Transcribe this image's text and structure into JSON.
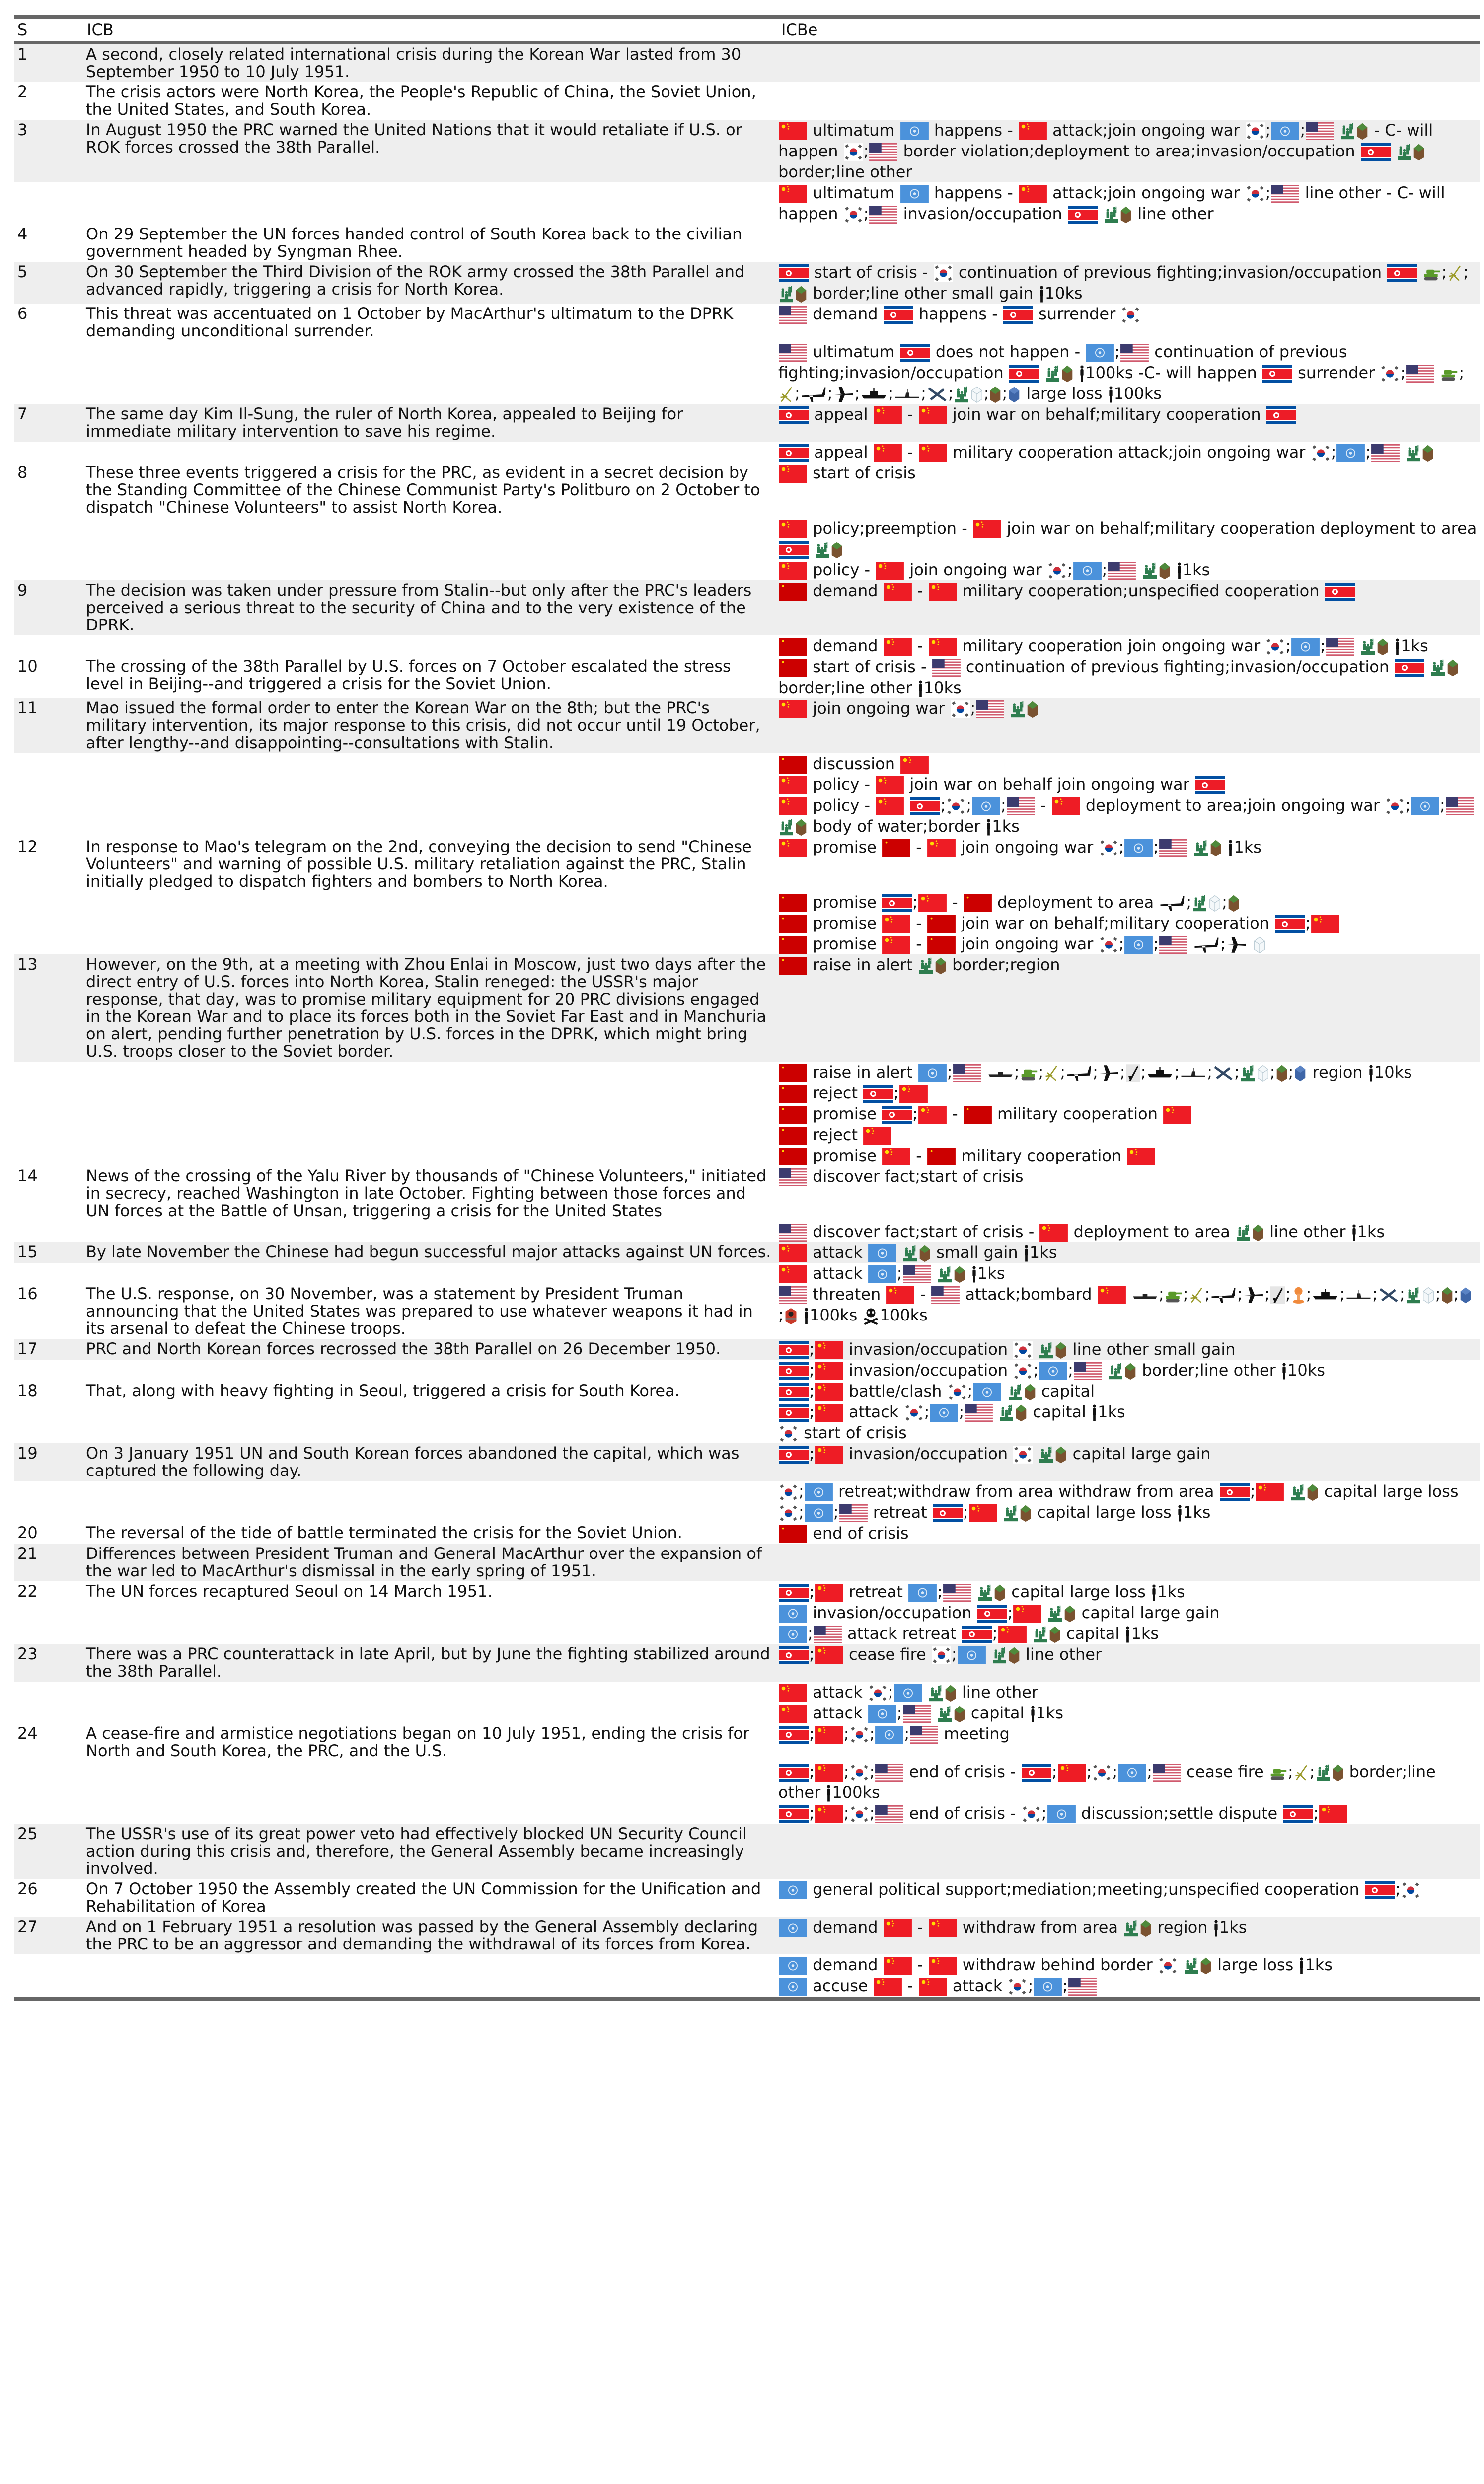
{
  "header": {
    "s": "S",
    "icb": "ICB",
    "icbe": "ICBe"
  },
  "icon_legend": {
    "CN": "china-flag",
    "SU": "soviet-flag",
    "UN": "un-flag",
    "US": "us-flag",
    "KR": "south-korea-flag",
    "KP": "north-korea-flag",
    "army": "army-icon",
    "land": "land-icon",
    "air": "air-icon",
    "sea": "sea-icon",
    "tank": "tank-icon",
    "artillery": "artillery-icon",
    "transport": "transport-plane-icon",
    "fighter": "fighter-jet-icon",
    "ship": "ship-icon",
    "sub": "submarine-icon",
    "bomber": "bomber-icon",
    "missile": "missile-icon",
    "nuke": "nuclear-icon",
    "boat": "boat-icon",
    "wmd": "wmd-icon",
    "person": "person-icon",
    "skull": "skull-icon"
  },
  "rows": [
    {
      "s": "1",
      "icb": "A second, closely related international crisis during the Korean War lasted from 30 September 1950 to 10 July 1951.",
      "events": []
    },
    {
      "s": "2",
      "icb": "The crisis actors were North Korea, the People's Republic of China, the Soviet Union, the United States, and South Korea.",
      "events": []
    },
    {
      "s": "3",
      "icb": "In August 1950 the PRC warned the United Nations that it would retaliate if U.S. or ROK forces crossed the 38th Parallel.",
      "events": [
        "{CN} ultimatum {UN} happens - {CN} attack;join ongoing war {KR};{UN};{US} {army}{land} - C- will happen {KR};{US} border violation;deployment to area;invasion/occupation {KP} {army}{land} border;line other",
        "{CN} ultimatum {UN} happens - {CN} attack;join ongoing war {KR};{US} line other - C- will happen {KR};{US} invasion/occupation {KP} {army}{land} line other"
      ]
    },
    {
      "s": "4",
      "icb": "On 29 September the UN forces handed control of South Korea back to the civilian government headed by Syngman Rhee.",
      "events": []
    },
    {
      "s": "5",
      "icb": "On 30 September the Third Division of the ROK army crossed the 38th Parallel and advanced rapidly, triggering a crisis for North Korea.",
      "events": [
        "{KP} start of crisis - {KR} continuation of previous fighting;invasion/occupation {KP} {tank};{artillery};{army}{land} border;line other small gain {person}10ks"
      ]
    },
    {
      "s": "6",
      "icb": "This threat was accentuated on 1 October by MacArthur's ultimatum to the DPRK demanding unconditional surrender.",
      "events": [
        "{US} demand {KP} happens - {KP} surrender {KR}",
        "{US} ultimatum {KP} does not happen - {UN};{US} continuation of previous fighting;invasion/occupation {KP} {army}{land} {person}100ks -C- will happen {KP} surrender {KR};{US} {tank};{artillery};{transport};{fighter};{ship};{sub};{bomber};{army}{air};{land};{sea} large loss {person}100ks"
      ]
    },
    {
      "s": "7",
      "icb": "The same day Kim Il-Sung, the ruler of North Korea, appealed to Beijing for immediate military intervention to save his regime.",
      "events": [
        "{KP} appeal {CN} - {CN} join war on behalf;military cooperation {KP}",
        "{KP} appeal {CN} - {CN} military cooperation attack;join ongoing war {KR};{UN};{US} {army}{land}"
      ]
    },
    {
      "s": "8",
      "icb": "These three events triggered a crisis for the PRC, as evident in a secret decision by the Standing Committee of the Chinese Communist Party's Politburo on 2 October to dispatch \"Chinese Volunteers\" to assist North Korea.",
      "events": [
        "{CN} start of crisis",
        "{CN} policy;preemption - {CN} join war on behalf;military cooperation deployment to area {KP} {army}{land}",
        "{CN} policy - {CN} join ongoing war {KR};{UN};{US} {army}{land} {person}1ks"
      ]
    },
    {
      "s": "9",
      "icb": "The decision was taken under pressure from Stalin--but only after the PRC's leaders perceived a serious threat to the security of China and to the very existence of the DPRK.",
      "events": [
        "{SU} demand {CN} - {CN} military cooperation;unspecified cooperation {KP}",
        "{SU} demand {CN} - {CN} military cooperation join ongoing war {KR};{UN};{US} {army}{land} {person}1ks"
      ]
    },
    {
      "s": "10",
      "icb": "The crossing of the 38th Parallel by U.S. forces on 7 October escalated the stress level in Beijing--and triggered a crisis for the Soviet Union.",
      "events": [
        "{SU} start of crisis - {US} continuation of previous fighting;invasion/occupation {KP} {army}{land} border;line other {person}10ks"
      ]
    },
    {
      "s": "11",
      "icb": "Mao issued the formal order to enter the Korean War on the 8th; but the PRC's military intervention, its major response to this crisis, did not occur until 19 October, after lengthy--and disappointing--consultations with Stalin.",
      "events": [
        "{CN} join ongoing war {KR};{US} {army}{land}",
        "{SU} discussion {CN}",
        "{CN} policy - {CN} join war on behalf join ongoing war {KP}",
        "{CN} policy - {CN} {KP};{KR};{UN};{US} - {CN} deployment to area;join ongoing war {KR};{UN};{US} {army}{land} body of water;border {person}1ks"
      ]
    },
    {
      "s": "12",
      "icb": "In response to Mao's telegram on the 2nd, conveying the decision to send \"Chinese Volunteers\" and warning of possible U.S. military retaliation against the PRC, Stalin initially pledged to dispatch fighters and bombers to North Korea.",
      "events": [
        "{CN} promise {SU} - {CN} join ongoing war {KR};{UN};{US} {army}{land} {person}1ks",
        "{SU} promise {KP};{CN} - {SU} deployment to area {transport};{army}{air};{land}",
        "{SU} promise {CN} - {SU} join war on behalf;military cooperation {KP};{CN}",
        "{SU} promise {CN} - {SU} join ongoing war {KR};{UN};{US} {transport};{fighter} {air}"
      ]
    },
    {
      "s": "13",
      "icb": "However, on the 9th, at a meeting with Zhou Enlai in Moscow, just two days after the direct entry of U.S. forces into North Korea, Stalin reneged: the USSR's major response, that day, was to promise military equipment for 20 PRC divisions engaged in the Korean War and to place its forces both in the Soviet Far East and in Manchuria on alert, pending further penetration by U.S. forces in the DPRK, which might bring U.S. troops closer to the Soviet border.",
      "events": [
        "{SU} raise in alert {army}{land} border;region",
        "{SU} raise in alert {UN};{US} {boat};{tank};{artillery};{transport};{fighter};{missile};{ship};{sub};{bomber};{army}{air};{land};{sea} region {person}10ks",
        "{SU} reject {KP};{CN}",
        "{SU} promise {KP};{CN} - {SU} military cooperation {CN}",
        "{SU} reject {CN}",
        "{SU} promise {CN} - {SU} military cooperation {CN}"
      ]
    },
    {
      "s": "14",
      "icb": "News of the crossing of the Yalu River by thousands of \"Chinese Volunteers,\" initiated in secrecy, reached Washington in late October. Fighting between those forces and UN forces at the Battle of Unsan, triggering a crisis for the United States",
      "events": [
        "{US} discover fact;start of crisis",
        "{US} discover fact;start of crisis - {CN} deployment to area {army}{land} line other {person}1ks"
      ]
    },
    {
      "s": "15",
      "icb": "By late November the Chinese had begun successful major attacks against UN forces.",
      "events": [
        "{CN} attack {UN} {army}{land} small gain {person}1ks",
        "{CN} attack {UN};{US} {army}{land} {person}1ks"
      ]
    },
    {
      "s": "16",
      "icb": "The U.S. response, on 30 November, was a statement by President Truman announcing that the United States was prepared to use whatever weapons it had in its arsenal to defeat the Chinese troops.",
      "events": [
        "{US} threaten {CN} - {US} attack;bombard {CN} {boat};{tank};{artillery};{transport};{fighter};{missile};{nuke};{ship};{sub};{bomber};{army}{air};{land};{sea};{wmd} {person}100ks {skull}100ks"
      ]
    },
    {
      "s": "17",
      "icb": "PRC and North Korean forces recrossed the 38th Parallel on 26 December 1950.",
      "events": [
        "{KP};{CN} invasion/occupation {KR} {army}{land} line other small gain",
        "{KP};{CN} invasion/occupation {KR};{UN};{US} {army}{land} border;line other {person}10ks"
      ]
    },
    {
      "s": "18",
      "icb": "That, along with heavy fighting in Seoul, triggered a crisis for South Korea.",
      "events": [
        "{KP};{CN} battle/clash {KR};{UN} {army}{land} capital",
        "{KP};{CN} attack {KR};{UN};{US} {army}{land} capital {person}1ks",
        "{KR} start of crisis"
      ]
    },
    {
      "s": "19",
      "icb": "On 3 January 1951 UN and South Korean forces abandoned the capital, which was captured the following day.",
      "events": [
        "{KP};{CN} invasion/occupation {KR} {army}{land} capital large gain",
        "{KR};{UN} retreat;withdraw from area withdraw from area {KP};{CN} {army}{land} capital large loss",
        "{KR};{UN};{US} retreat {KP};{CN} {army}{land} capital large loss {person}1ks"
      ]
    },
    {
      "s": "20",
      "icb": "The reversal of the tide of battle terminated the crisis for the Soviet Union.",
      "events": [
        "{SU} end of crisis"
      ]
    },
    {
      "s": "21",
      "icb": "Differences between President Truman and General MacArthur over the expansion of the war led to MacArthur's dismissal in the early spring of 1951.",
      "events": []
    },
    {
      "s": "22",
      "icb": "The UN forces recaptured Seoul on 14 March 1951.",
      "events": [
        "{KP};{CN} retreat {UN};{US} {army}{land} capital large loss {person}1ks",
        "{UN} invasion/occupation {KP};{CN} {army}{land} capital large gain",
        "{UN};{US} attack retreat {KP};{CN} {army}{land} capital {person}1ks"
      ]
    },
    {
      "s": "23",
      "icb": "There was a PRC counterattack in late April, but by June the fighting stabilized around the 38th Parallel.",
      "events": [
        "{KP};{CN} cease fire {KR};{UN} {army}{land} line other",
        "{CN} attack {KR};{UN} {army}{land} line other",
        "{CN} attack {UN};{US} {army}{land} capital {person}1ks"
      ]
    },
    {
      "s": "24",
      "icb": "A cease-fire and armistice negotiations began on 10 July 1951, ending the crisis for North and South Korea, the PRC, and the U.S.",
      "events": [
        "{KP};{CN};{KR};{UN};{US} meeting",
        "{KP};{CN};{KR};{US} end of crisis - {KP};{CN};{KR};{UN};{US} cease fire {tank};{artillery};{army}{land} border;line other {person}100ks",
        "{KP};{CN};{KR};{US} end of crisis - {KR};{UN} discussion;settle dispute {KP};{CN}"
      ]
    },
    {
      "s": "25",
      "icb": "The USSR's use of its great power veto had effectively blocked UN Security Council action during this crisis and, therefore, the General Assembly became increasingly involved.",
      "events": []
    },
    {
      "s": "26",
      "icb": "On 7 October 1950 the Assembly created the UN Commission for the Unification and Rehabilitation of Korea",
      "events": [
        "{UN} general political support;mediation;meeting;unspecified cooperation {KP};{KR}"
      ]
    },
    {
      "s": "27",
      "icb": "And on 1 February 1951 a resolution was passed by the General Assembly declaring the PRC to be an aggressor and demanding the withdrawal of its forces from Korea.",
      "events": [
        "{UN} demand {CN} - {CN} withdraw from area {army}{land} region {person}1ks",
        "{UN} demand {CN} - {CN} withdraw behind border {KR} {army}{land} large loss {person}1ks",
        "{UN} accuse {CN} - {CN} attack {KR};{UN};{US}"
      ]
    }
  ]
}
